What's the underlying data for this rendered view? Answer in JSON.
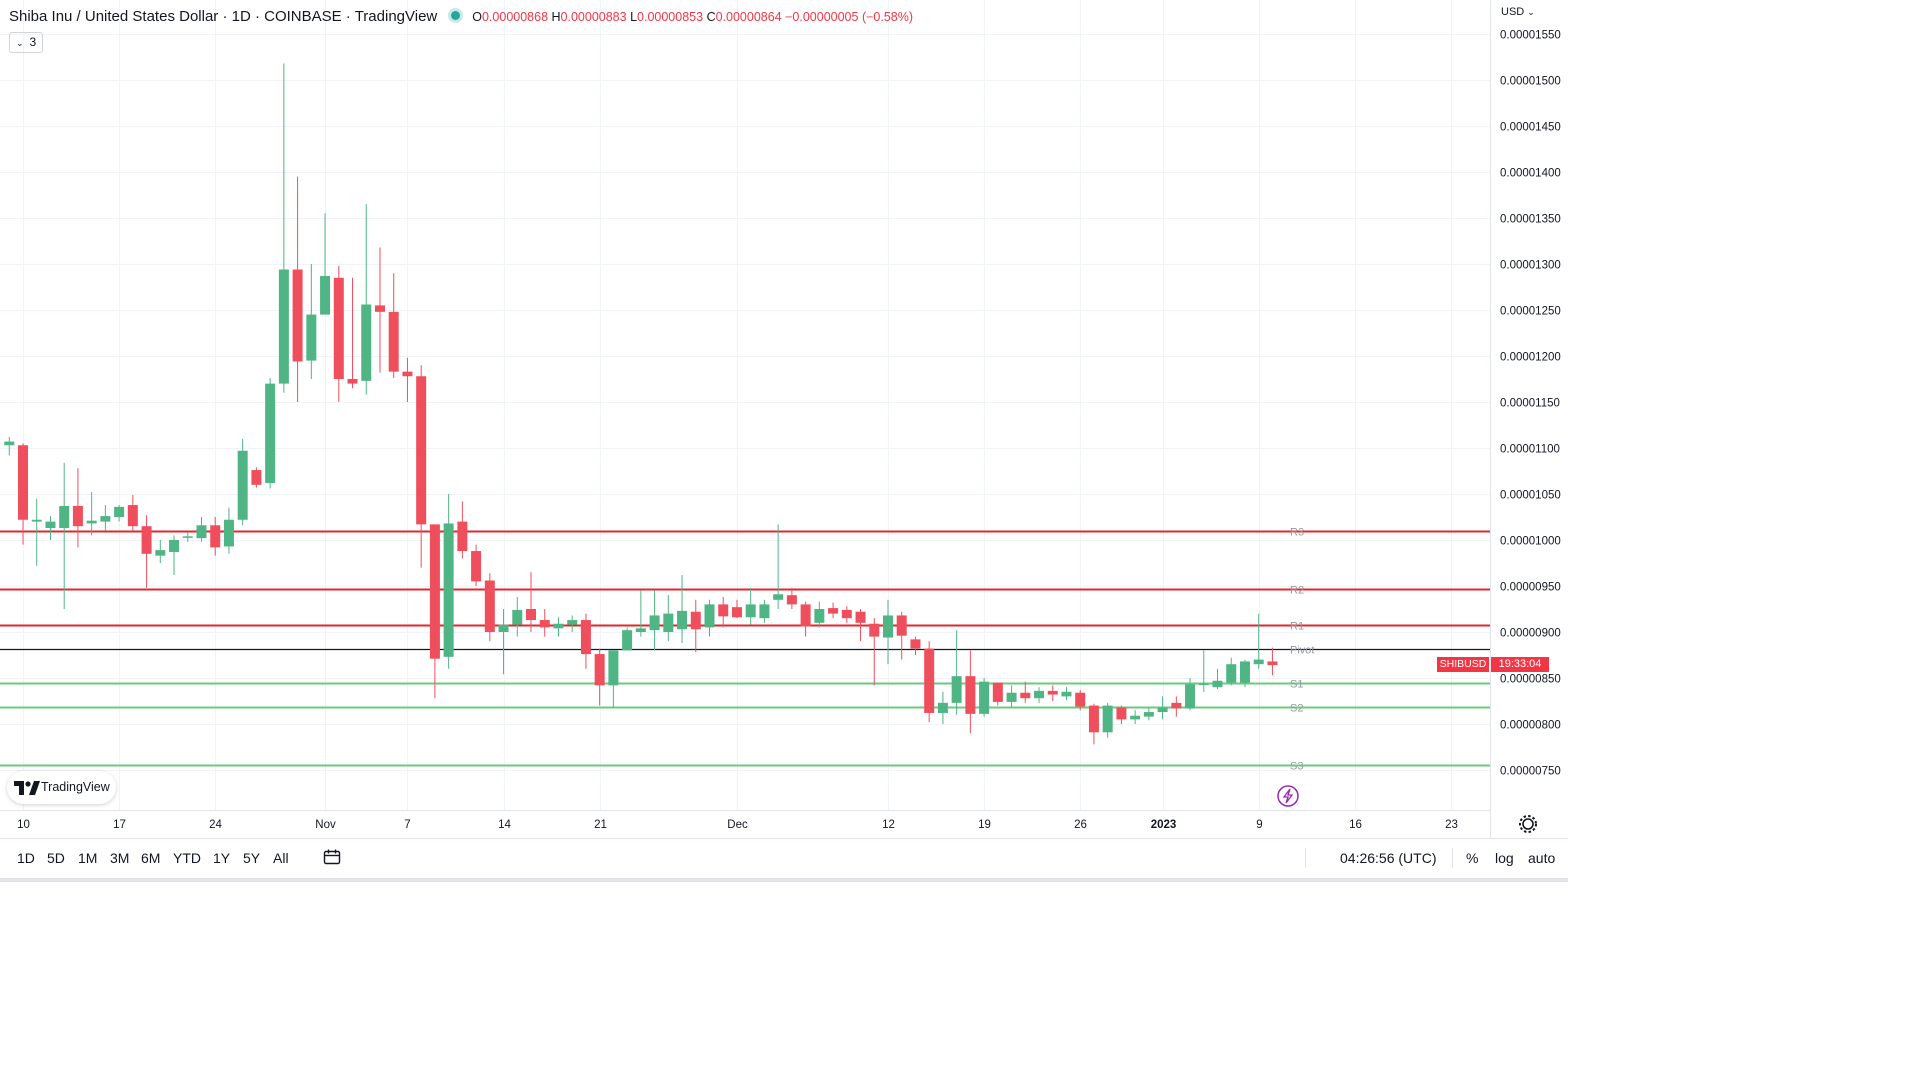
{
  "header": {
    "title": "Shiba Inu / United States Dollar · 1D · COINBASE · TradingView",
    "open_label": "O",
    "open": "0.00000868",
    "high_label": "H",
    "high": "0.00000883",
    "low_label": "L",
    "low": "0.00000853",
    "close_label": "C",
    "close": "0.00000864",
    "change": "−0.00000005 (−0.58%)",
    "indicators_count": "3"
  },
  "price_axis": {
    "currency": "USD"
  },
  "symbol_tag": "SHIBUSD",
  "countdown": "19:33:04",
  "logo_text": "TradingView",
  "bottom_bar": {
    "ranges": [
      "1D",
      "5D",
      "1M",
      "3M",
      "6M",
      "YTD",
      "1Y",
      "5Y",
      "All"
    ],
    "clock": "04:26:56 (UTC)",
    "percent_label": "%",
    "log_label": "log",
    "auto_label": "auto"
  },
  "colors": {
    "up": "#4fb585",
    "down": "#ef4f5c",
    "resistance": "#e0272f",
    "support": "#6ec97e",
    "pivot": "#131722"
  },
  "chart_data": {
    "type": "candlestick",
    "symbol": "SHIBUSD",
    "ylim": [
      7.3e-06,
      1.58e-05
    ],
    "y_ticks": [
      "0.00000750",
      "0.00000800",
      "0.00000850",
      "0.00000900",
      "0.00000950",
      "0.00001000",
      "0.00001050",
      "0.00001100",
      "0.00001150",
      "0.00001200",
      "0.00001250",
      "0.00001300",
      "0.00001350",
      "0.00001400",
      "0.00001450",
      "0.00001500",
      "0.00001550"
    ],
    "x_ticks": [
      {
        "day": 0,
        "label": "10"
      },
      {
        "day": 7,
        "label": "17"
      },
      {
        "day": 14,
        "label": "24"
      },
      {
        "day": 22,
        "label": "Nov"
      },
      {
        "day": 28,
        "label": "7"
      },
      {
        "day": 35,
        "label": "14"
      },
      {
        "day": 42,
        "label": "21"
      },
      {
        "day": 52,
        "label": "Dec"
      },
      {
        "day": 63,
        "label": "12"
      },
      {
        "day": 70,
        "label": "19"
      },
      {
        "day": 77,
        "label": "26"
      },
      {
        "day": 83,
        "label": "2023"
      },
      {
        "day": 90,
        "label": "9"
      },
      {
        "day": 97,
        "label": "16"
      },
      {
        "day": 104,
        "label": "23"
      }
    ],
    "levels": [
      {
        "name": "R3",
        "value": 1.01e-05,
        "kind": "resistance"
      },
      {
        "name": "R2",
        "value": 9.47e-06,
        "kind": "resistance"
      },
      {
        "name": "R1",
        "value": 9.08e-06,
        "kind": "resistance"
      },
      {
        "name": "Pivot",
        "value": 8.82e-06,
        "kind": "pivot"
      },
      {
        "name": "S1",
        "value": 8.45e-06,
        "kind": "support"
      },
      {
        "name": "S2",
        "value": 8.18e-06,
        "kind": "support"
      },
      {
        "name": "S3",
        "value": 7.55e-06,
        "kind": "support"
      }
    ],
    "candles": [
      {
        "d": -1,
        "o": 1.103e-05,
        "h": 1.112e-05,
        "l": 1.092e-05,
        "c": 1.107e-05
      },
      {
        "d": 0,
        "o": 1.103e-05,
        "h": 1.105e-05,
        "l": 9.95e-06,
        "c": 1.022e-05
      },
      {
        "d": 1,
        "o": 1.02e-05,
        "h": 1.045e-05,
        "l": 9.72e-06,
        "c": 1.022e-05
      },
      {
        "d": 2,
        "o": 1.013e-05,
        "h": 1.026e-05,
        "l": 1e-05,
        "c": 1.02e-05
      },
      {
        "d": 3,
        "o": 1.013e-05,
        "h": 1.084e-05,
        "l": 9.25e-06,
        "c": 1.037e-05
      },
      {
        "d": 4,
        "o": 1.037e-05,
        "h": 1.078e-05,
        "l": 9.92e-06,
        "c": 1.015e-05
      },
      {
        "d": 5,
        "o": 1.018e-05,
        "h": 1.052e-05,
        "l": 1.005e-05,
        "c": 1.021e-05
      },
      {
        "d": 6,
        "o": 1.02e-05,
        "h": 1.038e-05,
        "l": 1.01e-05,
        "c": 1.026e-05
      },
      {
        "d": 7,
        "o": 1.025e-05,
        "h": 1.038e-05,
        "l": 1.02e-05,
        "c": 1.036e-05
      },
      {
        "d": 8,
        "o": 1.038e-05,
        "h": 1.049e-05,
        "l": 1.01e-05,
        "c": 1.015e-05
      },
      {
        "d": 9,
        "o": 1.015e-05,
        "h": 1.027e-05,
        "l": 9.48e-06,
        "c": 9.85e-06
      },
      {
        "d": 10,
        "o": 9.83e-06,
        "h": 1e-05,
        "l": 9.75e-06,
        "c": 9.89e-06
      },
      {
        "d": 11,
        "o": 9.87e-06,
        "h": 1.005e-05,
        "l": 9.62e-06,
        "c": 1e-05
      },
      {
        "d": 12,
        "o": 1.003e-05,
        "h": 1.008e-05,
        "l": 9.98e-06,
        "c": 1.004e-05
      },
      {
        "d": 13,
        "o": 1.002e-05,
        "h": 1.025e-05,
        "l": 9.98e-06,
        "c": 1.016e-05
      },
      {
        "d": 14,
        "o": 1.016e-05,
        "h": 1.025e-05,
        "l": 9.83e-06,
        "c": 9.92e-06
      },
      {
        "d": 15,
        "o": 9.93e-06,
        "h": 1.035e-05,
        "l": 9.85e-06,
        "c": 1.022e-05
      },
      {
        "d": 16,
        "o": 1.022e-05,
        "h": 1.11e-05,
        "l": 1.016e-05,
        "c": 1.097e-05
      },
      {
        "d": 17,
        "o": 1.076e-05,
        "h": 1.079e-05,
        "l": 1.057e-05,
        "c": 1.06e-05
      },
      {
        "d": 18,
        "o": 1.062e-05,
        "h": 1.176e-05,
        "l": 1.056e-05,
        "c": 1.17e-05
      },
      {
        "d": 19,
        "o": 1.17e-05,
        "h": 1.518e-05,
        "l": 1.16e-05,
        "c": 1.294e-05
      },
      {
        "d": 20,
        "o": 1.294e-05,
        "h": 1.395e-05,
        "l": 1.15e-05,
        "c": 1.194e-05
      },
      {
        "d": 21,
        "o": 1.195e-05,
        "h": 1.3e-05,
        "l": 1.175e-05,
        "c": 1.245e-05
      },
      {
        "d": 22,
        "o": 1.245e-05,
        "h": 1.355e-05,
        "l": 1.245e-05,
        "c": 1.287e-05
      },
      {
        "d": 23,
        "o": 1.285e-05,
        "h": 1.298e-05,
        "l": 1.15e-05,
        "c": 1.175e-05
      },
      {
        "d": 24,
        "o": 1.175e-05,
        "h": 1.285e-05,
        "l": 1.165e-05,
        "c": 1.17e-05
      },
      {
        "d": 25,
        "o": 1.173e-05,
        "h": 1.365e-05,
        "l": 1.158e-05,
        "c": 1.256e-05
      },
      {
        "d": 26,
        "o": 1.255e-05,
        "h": 1.318e-05,
        "l": 1.182e-05,
        "c": 1.248e-05
      },
      {
        "d": 27,
        "o": 1.248e-05,
        "h": 1.29e-05,
        "l": 1.176e-05,
        "c": 1.183e-05
      },
      {
        "d": 28,
        "o": 1.183e-05,
        "h": 1.198e-05,
        "l": 1.15e-05,
        "c": 1.178e-05
      },
      {
        "d": 29,
        "o": 1.178e-05,
        "h": 1.19e-05,
        "l": 9.7e-06,
        "c": 1.017e-05
      },
      {
        "d": 30,
        "o": 1.017e-05,
        "h": 1.017e-05,
        "l": 8.28e-06,
        "c": 8.71e-06
      },
      {
        "d": 31,
        "o": 8.73e-06,
        "h": 1.05e-05,
        "l": 8.6e-06,
        "c": 1.018e-05
      },
      {
        "d": 32,
        "o": 1.02e-05,
        "h": 1.042e-05,
        "l": 9.8e-06,
        "c": 9.88e-06
      },
      {
        "d": 33,
        "o": 9.88e-06,
        "h": 9.95e-06,
        "l": 9.5e-06,
        "c": 9.55e-06
      },
      {
        "d": 34,
        "o": 9.56e-06,
        "h": 9.64e-06,
        "l": 8.9e-06,
        "c": 9e-06
      },
      {
        "d": 35,
        "o": 9e-06,
        "h": 9.25e-06,
        "l": 8.54e-06,
        "c": 9.08e-06
      },
      {
        "d": 36,
        "o": 9.08e-06,
        "h": 9.38e-06,
        "l": 8.95e-06,
        "c": 9.24e-06
      },
      {
        "d": 37,
        "o": 9.25e-06,
        "h": 9.65e-06,
        "l": 9e-06,
        "c": 9.13e-06
      },
      {
        "d": 38,
        "o": 9.13e-06,
        "h": 9.25e-06,
        "l": 8.95e-06,
        "c": 9.05e-06
      },
      {
        "d": 39,
        "o": 9.04e-06,
        "h": 9.16e-06,
        "l": 8.95e-06,
        "c": 9.09e-06
      },
      {
        "d": 40,
        "o": 9.08e-06,
        "h": 9.18e-06,
        "l": 9e-06,
        "c": 9.13e-06
      },
      {
        "d": 41,
        "o": 9.13e-06,
        "h": 9.2e-06,
        "l": 8.6e-06,
        "c": 8.76e-06
      },
      {
        "d": 42,
        "o": 8.76e-06,
        "h": 8.82e-06,
        "l": 8.2e-06,
        "c": 8.42e-06
      },
      {
        "d": 43,
        "o": 8.42e-06,
        "h": 8.8e-06,
        "l": 8.18e-06,
        "c": 8.8e-06
      },
      {
        "d": 44,
        "o": 8.8e-06,
        "h": 9.05e-06,
        "l": 8.8e-06,
        "c": 9.02e-06
      },
      {
        "d": 45,
        "o": 9e-06,
        "h": 9.45e-06,
        "l": 8.95e-06,
        "c": 9.04e-06
      },
      {
        "d": 46,
        "o": 9.02e-06,
        "h": 9.45e-06,
        "l": 8.8e-06,
        "c": 9.18e-06
      },
      {
        "d": 47,
        "o": 9e-06,
        "h": 9.4e-06,
        "l": 8.9e-06,
        "c": 9.2e-06
      },
      {
        "d": 48,
        "o": 9.03e-06,
        "h": 9.62e-06,
        "l": 8.88e-06,
        "c": 9.23e-06
      },
      {
        "d": 49,
        "o": 9.22e-06,
        "h": 9.35e-06,
        "l": 8.78e-06,
        "c": 9.03e-06
      },
      {
        "d": 50,
        "o": 9.05e-06,
        "h": 9.35e-06,
        "l": 8.95e-06,
        "c": 9.3e-06
      },
      {
        "d": 51,
        "o": 9.3e-06,
        "h": 9.38e-06,
        "l": 9.05e-06,
        "c": 9.17e-06
      },
      {
        "d": 52,
        "o": 9.27e-06,
        "h": 9.35e-06,
        "l": 9.15e-06,
        "c": 9.16e-06
      },
      {
        "d": 53,
        "o": 9.16e-06,
        "h": 9.48e-06,
        "l": 9.08e-06,
        "c": 9.3e-06
      },
      {
        "d": 54,
        "o": 9.15e-06,
        "h": 9.35e-06,
        "l": 9.1e-06,
        "c": 9.3e-06
      },
      {
        "d": 55,
        "o": 9.35e-06,
        "h": 1.017e-05,
        "l": 9.25e-06,
        "c": 9.41e-06
      },
      {
        "d": 56,
        "o": 9.4e-06,
        "h": 9.48e-06,
        "l": 9.25e-06,
        "c": 9.3e-06
      },
      {
        "d": 57,
        "o": 9.3e-06,
        "h": 9.33e-06,
        "l": 8.95e-06,
        "c": 9.06e-06
      },
      {
        "d": 58,
        "o": 9.1e-06,
        "h": 9.33e-06,
        "l": 9.05e-06,
        "c": 9.25e-06
      },
      {
        "d": 59,
        "o": 9.26e-06,
        "h": 9.32e-06,
        "l": 9.15e-06,
        "c": 9.2e-06
      },
      {
        "d": 60,
        "o": 9.24e-06,
        "h": 9.28e-06,
        "l": 9.1e-06,
        "c": 9.15e-06
      },
      {
        "d": 61,
        "o": 9.22e-06,
        "h": 9.25e-06,
        "l": 8.9e-06,
        "c": 9.1e-06
      },
      {
        "d": 62,
        "o": 9.09e-06,
        "h": 9.15e-06,
        "l": 8.42e-06,
        "c": 8.95e-06
      },
      {
        "d": 63,
        "o": 8.94e-06,
        "h": 9.35e-06,
        "l": 8.65e-06,
        "c": 9.18e-06
      },
      {
        "d": 64,
        "o": 9.18e-06,
        "h": 9.22e-06,
        "l": 8.7e-06,
        "c": 8.96e-06
      },
      {
        "d": 65,
        "o": 8.92e-06,
        "h": 8.95e-06,
        "l": 8.75e-06,
        "c": 8.82e-06
      },
      {
        "d": 66,
        "o": 8.82e-06,
        "h": 8.9e-06,
        "l": 8.02e-06,
        "c": 8.12e-06
      },
      {
        "d": 67,
        "o": 8.12e-06,
        "h": 8.35e-06,
        "l": 8e-06,
        "c": 8.23e-06
      },
      {
        "d": 68,
        "o": 8.23e-06,
        "h": 9.02e-06,
        "l": 8.1e-06,
        "c": 8.52e-06
      },
      {
        "d": 69,
        "o": 8.52e-06,
        "h": 8.8e-06,
        "l": 7.9e-06,
        "c": 8.11e-06
      },
      {
        "d": 70,
        "o": 8.11e-06,
        "h": 8.5e-06,
        "l": 8.08e-06,
        "c": 8.46e-06
      },
      {
        "d": 71,
        "o": 8.45e-06,
        "h": 8.45e-06,
        "l": 8.2e-06,
        "c": 8.24e-06
      },
      {
        "d": 72,
        "o": 8.24e-06,
        "h": 8.42e-06,
        "l": 8.18e-06,
        "c": 8.34e-06
      },
      {
        "d": 73,
        "o": 8.34e-06,
        "h": 8.46e-06,
        "l": 8.23e-06,
        "c": 8.28e-06
      },
      {
        "d": 74,
        "o": 8.28e-06,
        "h": 8.4e-06,
        "l": 8.23e-06,
        "c": 8.36e-06
      },
      {
        "d": 75,
        "o": 8.36e-06,
        "h": 8.42e-06,
        "l": 8.25e-06,
        "c": 8.32e-06
      },
      {
        "d": 76,
        "o": 8.3e-06,
        "h": 8.4e-06,
        "l": 8.26e-06,
        "c": 8.35e-06
      },
      {
        "d": 77,
        "o": 8.34e-06,
        "h": 8.37e-06,
        "l": 8.15e-06,
        "c": 8.19e-06
      },
      {
        "d": 78,
        "o": 8.2e-06,
        "h": 8.22e-06,
        "l": 7.78e-06,
        "c": 7.91e-06
      },
      {
        "d": 79,
        "o": 7.91e-06,
        "h": 8.23e-06,
        "l": 7.85e-06,
        "c": 8.2e-06
      },
      {
        "d": 80,
        "o": 8.18e-06,
        "h": 8.2e-06,
        "l": 8e-06,
        "c": 8.05e-06
      },
      {
        "d": 81,
        "o": 8.05e-06,
        "h": 8.15e-06,
        "l": 8e-06,
        "c": 8.09e-06
      },
      {
        "d": 82,
        "o": 8.08e-06,
        "h": 8.18e-06,
        "l": 8.04e-06,
        "c": 8.13e-06
      },
      {
        "d": 83,
        "o": 8.13e-06,
        "h": 8.3e-06,
        "l": 8.05e-06,
        "c": 8.18e-06
      },
      {
        "d": 84,
        "o": 8.23e-06,
        "h": 8.3e-06,
        "l": 8.08e-06,
        "c": 8.17e-06
      },
      {
        "d": 85,
        "o": 8.17e-06,
        "h": 8.5e-06,
        "l": 8.15e-06,
        "c": 8.43e-06
      },
      {
        "d": 86,
        "o": 8.43e-06,
        "h": 8.8e-06,
        "l": 8.35e-06,
        "c": 8.44e-06
      },
      {
        "d": 87,
        "o": 8.4e-06,
        "h": 8.6e-06,
        "l": 8.38e-06,
        "c": 8.47e-06
      },
      {
        "d": 88,
        "o": 8.45e-06,
        "h": 8.72e-06,
        "l": 8.42e-06,
        "c": 8.65e-06
      },
      {
        "d": 89,
        "o": 8.45e-06,
        "h": 8.7e-06,
        "l": 8.4e-06,
        "c": 8.68e-06
      },
      {
        "d": 90,
        "o": 8.65e-06,
        "h": 9.2e-06,
        "l": 8.6e-06,
        "c": 8.7e-06
      },
      {
        "d": 91,
        "o": 8.68e-06,
        "h": 8.83e-06,
        "l": 8.53e-06,
        "c": 8.64e-06
      }
    ]
  }
}
